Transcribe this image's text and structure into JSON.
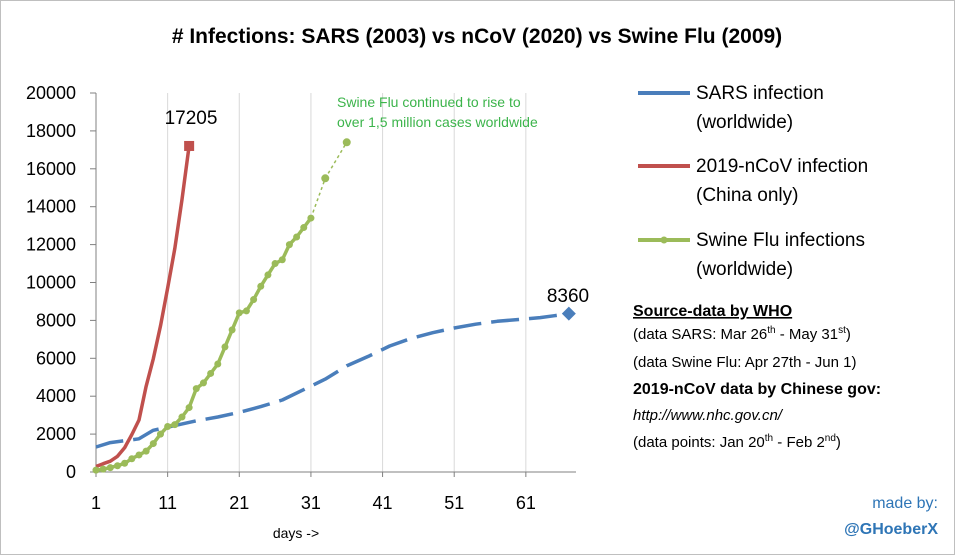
{
  "chart_data": {
    "type": "line",
    "title": "# Infections: SARS (2003) vs nCoV (2020) vs Swine Flu (2009)",
    "xlabel": "days ->",
    "ylabel": "",
    "xlim": [
      0,
      68
    ],
    "ylim": [
      0,
      20000
    ],
    "x_ticks": [
      1,
      11,
      21,
      31,
      41,
      51,
      61
    ],
    "y_ticks": [
      0,
      2000,
      4000,
      6000,
      8000,
      10000,
      12000,
      14000,
      16000,
      18000,
      20000
    ],
    "grid": "vertical",
    "series": [
      {
        "name_line1": "SARS infection",
        "name_line2": "(worldwide)",
        "color": "#4a7ebb",
        "style": "dashed",
        "end_marker": "diamond",
        "end_label": "8360",
        "x": [
          1,
          3,
          5,
          7,
          9,
          12,
          15,
          18,
          21,
          24,
          27,
          30,
          33,
          36,
          39,
          42,
          45,
          48,
          51,
          54,
          57,
          60,
          63,
          65,
          67
        ],
        "y": [
          1320,
          1550,
          1650,
          1750,
          2200,
          2450,
          2700,
          2900,
          3150,
          3450,
          3800,
          4350,
          4900,
          5600,
          6100,
          6650,
          7050,
          7350,
          7600,
          7800,
          7950,
          8050,
          8150,
          8250,
          8360
        ]
      },
      {
        "name_line1": "2019-nCoV infection",
        "name_line2": "(China only)",
        "color": "#c0504d",
        "style": "solid",
        "end_marker": "square",
        "end_label": "17205",
        "x": [
          1,
          2,
          3,
          4,
          5,
          6,
          7,
          8,
          9,
          10,
          11,
          12,
          13,
          14
        ],
        "y": [
          291,
          440,
          571,
          830,
          1287,
          1975,
          2744,
          4515,
          5974,
          7711,
          9692,
          11791,
          14380,
          17205
        ]
      },
      {
        "name_line1": "Swine Flu infections",
        "name_line2": "(worldwide)",
        "color": "#9bbb59",
        "style": "solid-markers",
        "x": [
          1,
          2,
          3,
          4,
          5,
          6,
          7,
          8,
          9,
          10,
          11,
          12,
          13,
          14,
          15,
          16,
          17,
          18,
          19,
          20,
          21,
          22,
          23,
          24,
          25,
          26,
          27,
          28,
          29,
          30,
          31
        ],
        "y": [
          100,
          150,
          230,
          330,
          460,
          700,
          900,
          1100,
          1500,
          2000,
          2400,
          2500,
          2900,
          3400,
          4400,
          4700,
          5200,
          5700,
          6600,
          7500,
          8400,
          8500,
          9100,
          9800,
          10400,
          11000,
          11200,
          12000,
          12400,
          12900,
          13400
        ]
      },
      {
        "name": "",
        "color": "#9bbb59",
        "style": "dotted-extension",
        "x": [
          31,
          33,
          36
        ],
        "y": [
          13400,
          15500,
          17400
        ]
      }
    ],
    "annotation_line1": "Swine Flu continued to rise to",
    "annotation_line2": "over 1,5 million cases worldwide"
  },
  "source": {
    "heading": "Source-data by WHO",
    "sars_prefix": "(data SARS: Mar 26",
    "sars_sup1": "th",
    "sars_mid": " - May 31",
    "sars_sup2": "st",
    "sars_suffix": ")",
    "swine": "(data Swine Flu: Apr 27th - Jun 1)",
    "ncov_heading": "2019-nCoV data by Chinese gov:",
    "url": "http://www.nhc.gov.cn/",
    "points_prefix": "(data points: Jan 20",
    "points_sup1": "th",
    "points_mid": " - Feb 2",
    "points_sup2": "nd",
    "points_suffix": ")"
  },
  "credit": {
    "line1": "made by:",
    "line2": "@GHoeberX"
  }
}
